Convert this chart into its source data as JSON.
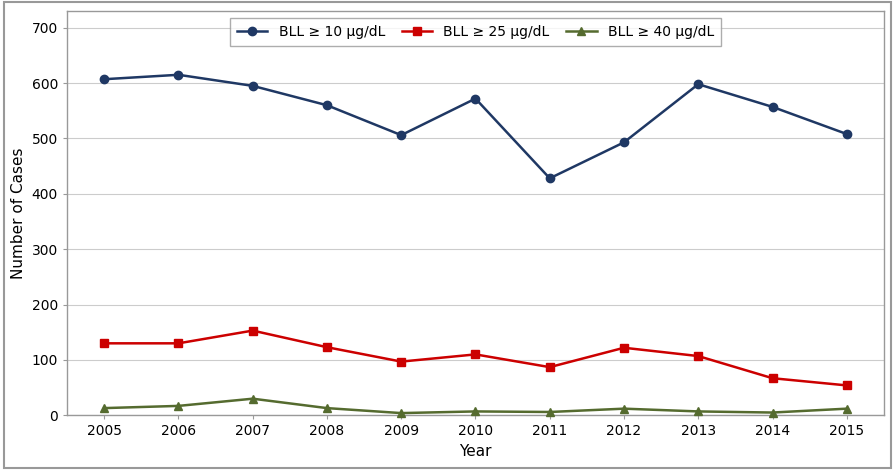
{
  "years": [
    2005,
    2006,
    2007,
    2008,
    2009,
    2010,
    2011,
    2012,
    2013,
    2014,
    2015
  ],
  "bll10": [
    607,
    615,
    595,
    560,
    506,
    572,
    428,
    493,
    598,
    557,
    508
  ],
  "bll25": [
    130,
    130,
    153,
    123,
    97,
    110,
    87,
    122,
    107,
    67,
    54
  ],
  "bll40": [
    13,
    17,
    30,
    13,
    4,
    7,
    6,
    12,
    7,
    5,
    12
  ],
  "bll10_color": "#1F3864",
  "bll25_color": "#CC0000",
  "bll40_color": "#556B2F",
  "xlabel": "Year",
  "ylabel": "Number of Cases",
  "ylim": [
    0,
    730
  ],
  "yticks": [
    0,
    100,
    200,
    300,
    400,
    500,
    600,
    700
  ],
  "legend_bll10": "BLL ≥ 10 μg/dL",
  "legend_bll25": "BLL ≥ 25 μg/dL",
  "legend_bll40": "BLL ≥ 40 μg/dL",
  "marker_circle": "o",
  "marker_square": "s",
  "marker_triangle": "^",
  "linewidth": 1.8,
  "markersize": 6,
  "bg_color": "#FFFFFF",
  "border_color": "#999999",
  "grid_color": "#CCCCCC"
}
